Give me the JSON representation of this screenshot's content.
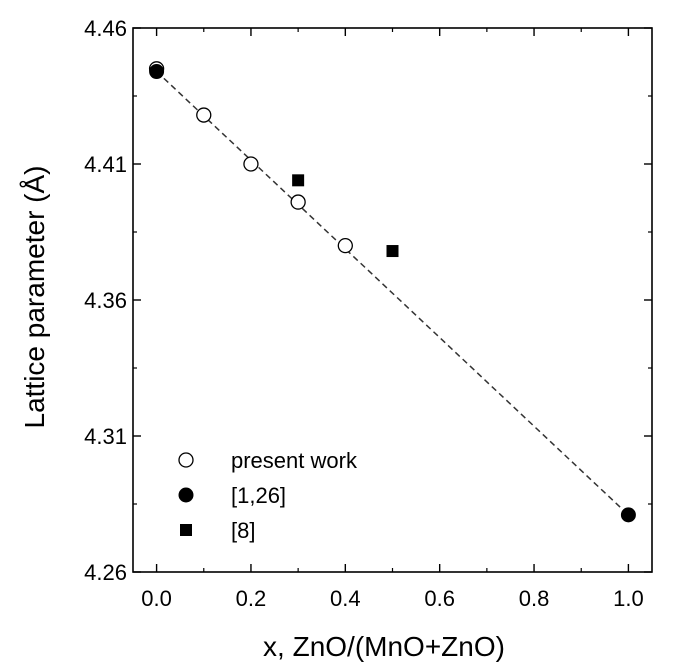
{
  "chart_data": {
    "type": "scatter",
    "title": "",
    "xlabel": "x, ZnO/(MnO+ZnO)",
    "ylabel": "Lattice parameter (Å)",
    "xlim": [
      -0.05,
      1.05
    ],
    "ylim": [
      4.26,
      4.46
    ],
    "xticks": [
      0.0,
      0.2,
      0.4,
      0.6,
      0.8,
      1.0
    ],
    "xtick_labels": [
      "0.0",
      "0.2",
      "0.4",
      "0.6",
      "0.8",
      "1.0"
    ],
    "xminor": [
      0.1,
      0.3,
      0.5,
      0.7,
      0.9
    ],
    "yticks": [
      4.26,
      4.31,
      4.36,
      4.41,
      4.46
    ],
    "ytick_labels": [
      "4.26",
      "4.31",
      "4.36",
      "4.41",
      "4.46"
    ],
    "yminor": [
      4.285,
      4.335,
      4.385,
      4.435
    ],
    "grid": false,
    "legend_position": "bottom-left",
    "series": [
      {
        "name": "present work",
        "marker": "open-circle",
        "color": "#000000",
        "x": [
          0.0,
          0.1,
          0.2,
          0.3,
          0.4
        ],
        "y": [
          4.445,
          4.428,
          4.41,
          4.396,
          4.38
        ]
      },
      {
        "name": "[1,26]",
        "marker": "filled-circle",
        "color": "#000000",
        "x": [
          0.0,
          1.0
        ],
        "y": [
          4.444,
          4.281
        ]
      },
      {
        "name": "[8]",
        "marker": "filled-square",
        "color": "#000000",
        "x": [
          0.3,
          0.5
        ],
        "y": [
          4.404,
          4.378
        ]
      }
    ],
    "fit_line": {
      "style": "dashed",
      "color": "#333333",
      "x": [
        0.0,
        1.0
      ],
      "y": [
        4.444,
        4.281
      ]
    }
  }
}
